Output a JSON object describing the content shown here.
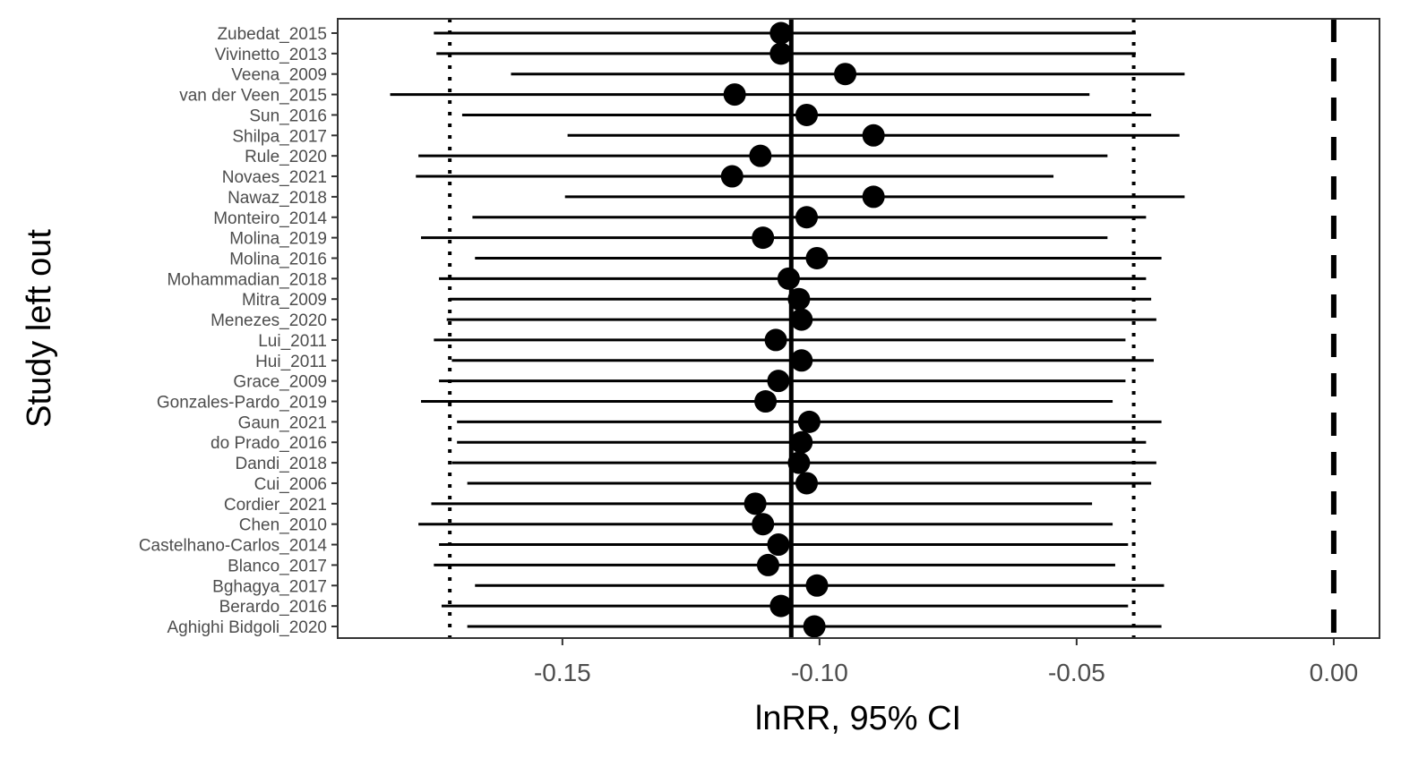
{
  "chart_data": {
    "type": "forest",
    "xlabel": "lnRR, 95% CI",
    "ylabel": "Study left out",
    "xlim": [
      -0.1937,
      0.0089
    ],
    "x_ticks": [
      -0.15,
      -0.1,
      -0.05,
      0.0
    ],
    "x_tick_labels": [
      "-0.15",
      "-0.10",
      "-0.05",
      "0.00"
    ],
    "overall_estimate": -0.1055,
    "overall_ci": [
      -0.1719,
      -0.0389
    ],
    "null_line": 0.0,
    "grid": false,
    "colors": {
      "points": "#000000",
      "ci": "#000000",
      "panel_border": "#333333",
      "tick_text": "#4d4d4d"
    },
    "studies": [
      {
        "name": "Zubedat_2015",
        "est": -0.1075,
        "lo": -0.175,
        "hi": -0.0385
      },
      {
        "name": "Vivinetto_2013",
        "est": -0.1075,
        "lo": -0.1745,
        "hi": -0.0385
      },
      {
        "name": "Veena_2009",
        "est": -0.095,
        "lo": -0.16,
        "hi": -0.029
      },
      {
        "name": "van der Veen_2015",
        "est": -0.1165,
        "lo": -0.1835,
        "hi": -0.0475
      },
      {
        "name": "Sun_2016",
        "est": -0.1025,
        "lo": -0.1695,
        "hi": -0.0355
      },
      {
        "name": "Shilpa_2017",
        "est": -0.0895,
        "lo": -0.149,
        "hi": -0.03
      },
      {
        "name": "Rule_2020",
        "est": -0.1115,
        "lo": -0.178,
        "hi": -0.044
      },
      {
        "name": "Novaes_2021",
        "est": -0.117,
        "lo": -0.1785,
        "hi": -0.0545
      },
      {
        "name": "Nawaz_2018",
        "est": -0.0895,
        "lo": -0.1495,
        "hi": -0.029
      },
      {
        "name": "Monteiro_2014",
        "est": -0.1025,
        "lo": -0.1675,
        "hi": -0.0365
      },
      {
        "name": "Molina_2019",
        "est": -0.111,
        "lo": -0.1775,
        "hi": -0.044
      },
      {
        "name": "Molina_2016",
        "est": -0.1005,
        "lo": -0.167,
        "hi": -0.0335
      },
      {
        "name": "Mohammadian_2018",
        "est": -0.106,
        "lo": -0.174,
        "hi": -0.0365
      },
      {
        "name": "Mitra_2009",
        "est": -0.104,
        "lo": -0.172,
        "hi": -0.0355
      },
      {
        "name": "Menezes_2020",
        "est": -0.1035,
        "lo": -0.1725,
        "hi": -0.0345
      },
      {
        "name": "Lui_2011",
        "est": -0.1085,
        "lo": -0.175,
        "hi": -0.0405
      },
      {
        "name": "Hui_2011",
        "est": -0.1035,
        "lo": -0.1715,
        "hi": -0.035
      },
      {
        "name": "Grace_2009",
        "est": -0.108,
        "lo": -0.174,
        "hi": -0.0405
      },
      {
        "name": "Gonzales-Pardo_2019",
        "est": -0.1105,
        "lo": -0.1775,
        "hi": -0.043
      },
      {
        "name": "Gaun_2021",
        "est": -0.102,
        "lo": -0.1705,
        "hi": -0.0335
      },
      {
        "name": "do Prado_2016",
        "est": -0.1035,
        "lo": -0.1705,
        "hi": -0.0365
      },
      {
        "name": "Dandi_2018",
        "est": -0.104,
        "lo": -0.1715,
        "hi": -0.0345
      },
      {
        "name": "Cui_2006",
        "est": -0.1025,
        "lo": -0.1685,
        "hi": -0.0355
      },
      {
        "name": "Cordier_2021",
        "est": -0.1125,
        "lo": -0.1755,
        "hi": -0.047
      },
      {
        "name": "Chen_2010",
        "est": -0.111,
        "lo": -0.178,
        "hi": -0.043
      },
      {
        "name": "Castelhano-Carlos_2014",
        "est": -0.108,
        "lo": -0.174,
        "hi": -0.04
      },
      {
        "name": "Blanco_2017",
        "est": -0.11,
        "lo": -0.175,
        "hi": -0.0425
      },
      {
        "name": "Bghagya_2017",
        "est": -0.1005,
        "lo": -0.167,
        "hi": -0.033
      },
      {
        "name": "Berardo_2016",
        "est": -0.1075,
        "lo": -0.1735,
        "hi": -0.04
      },
      {
        "name": "Aghighi Bidgoli_2020",
        "est": -0.101,
        "lo": -0.1685,
        "hi": -0.0335
      }
    ]
  }
}
